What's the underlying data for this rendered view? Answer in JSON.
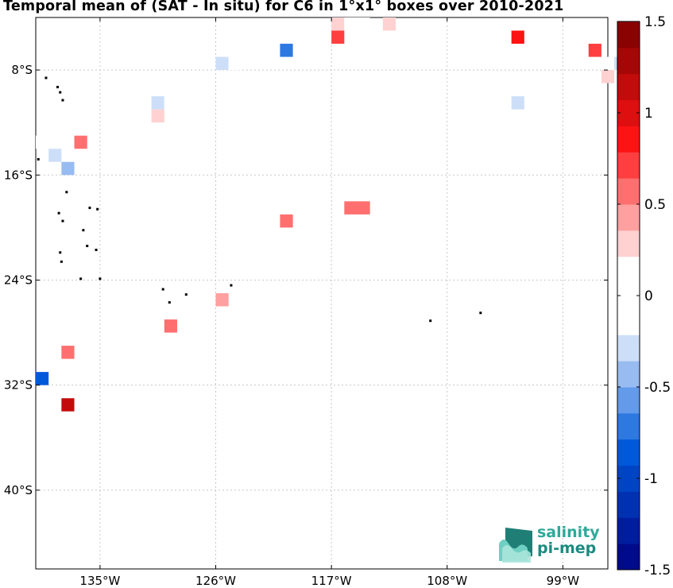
{
  "title": "Temporal mean of (SAT - In situ) for C6 in 1°x1° boxes over 2010-2021",
  "map": {
    "xticks": [
      {
        "lon": -135,
        "label": "135°W"
      },
      {
        "lon": -126,
        "label": "126°W"
      },
      {
        "lon": -117,
        "label": "117°W"
      },
      {
        "lon": -108,
        "label": "108°W"
      },
      {
        "lon": -99,
        "label": "99°W"
      }
    ],
    "yticks": [
      {
        "lat": -8,
        "label": "8°S"
      },
      {
        "lat": -16,
        "label": "16°S"
      },
      {
        "lat": -24,
        "label": "24°S"
      },
      {
        "lat": -32,
        "label": "32°S"
      },
      {
        "lat": -40,
        "label": "40°S"
      }
    ],
    "lon_range": [
      -140,
      -95.5
    ],
    "lat_range": [
      -46,
      -4
    ],
    "grid": true
  },
  "colorbar": {
    "vmin": -1.5,
    "vmax": 1.5,
    "nlevels": 21,
    "ticks": [
      "1.5",
      "1",
      "0.5",
      "0",
      "-0.5",
      "-1",
      "-1.5"
    ]
  },
  "boxes": [
    {
      "lon": -116.5,
      "lat": -4.5,
      "v": 0.3
    },
    {
      "lon": -115.5,
      "lat": -4.5,
      "v": 0.2
    },
    {
      "lon": -114.5,
      "lat": -4.5,
      "v": -0.1
    },
    {
      "lon": -112.5,
      "lat": -4.5,
      "v": 0.35
    },
    {
      "lon": -119.5,
      "lat": -5.5,
      "v": 0.15
    },
    {
      "lon": -118.5,
      "lat": -5.5,
      "v": -0.1
    },
    {
      "lon": -117.5,
      "lat": -5.5,
      "v": 0.1
    },
    {
      "lon": -116.5,
      "lat": -5.5,
      "v": 0.7
    },
    {
      "lon": -102.5,
      "lat": -5.5,
      "v": 0.8
    },
    {
      "lon": -120.5,
      "lat": -6.5,
      "v": -0.7
    },
    {
      "lon": -96.5,
      "lat": -6.5,
      "v": 0.7
    },
    {
      "lon": -125.5,
      "lat": -7.5,
      "v": -0.3
    },
    {
      "lon": -124.5,
      "lat": -7.5,
      "v": 0.15
    },
    {
      "lon": -95.5,
      "lat": -7.5,
      "v": 0.2
    },
    {
      "lon": -94.5,
      "lat": -7.5,
      "v": -0.35
    },
    {
      "lon": -95.5,
      "lat": -8.5,
      "v": 0.3
    },
    {
      "lon": -130.5,
      "lat": -10.5,
      "v": -0.35
    },
    {
      "lon": -129.5,
      "lat": -10.5,
      "v": -0.1
    },
    {
      "lon": -102.5,
      "lat": -10.5,
      "v": -0.35
    },
    {
      "lon": -130.5,
      "lat": -11.5,
      "v": 0.25
    },
    {
      "lon": -112.5,
      "lat": -11.5,
      "v": -0.2
    },
    {
      "lon": -136.5,
      "lat": -12.5,
      "v": -0.1
    },
    {
      "lon": -139.5,
      "lat": -13.5,
      "v": -0.1
    },
    {
      "lon": -138.5,
      "lat": -13.5,
      "v": -0.1
    },
    {
      "lon": -137.5,
      "lat": -13.5,
      "v": -0.1
    },
    {
      "lon": -136.5,
      "lat": -13.5,
      "v": 0.6
    },
    {
      "lon": -102.5,
      "lat": -13.5,
      "v": 0.1
    },
    {
      "lon": -138.5,
      "lat": -14.5,
      "v": -0.3
    },
    {
      "lon": -137.5,
      "lat": -15.5,
      "v": -0.4
    },
    {
      "lon": -115.5,
      "lat": -18.5,
      "v": 0.6
    },
    {
      "lon": -114.5,
      "lat": -18.5,
      "v": 0.5
    },
    {
      "lon": -120.5,
      "lat": -19.5,
      "v": 0.55
    },
    {
      "lon": -125.5,
      "lat": -25.5,
      "v": 0.4
    },
    {
      "lon": -127.5,
      "lat": -26.5,
      "v": -0.15
    },
    {
      "lon": -129.5,
      "lat": -27.5,
      "v": 0.5
    },
    {
      "lon": -137.5,
      "lat": -29.5,
      "v": 0.6
    },
    {
      "lon": -133.5,
      "lat": -29.5,
      "v": -0.2
    },
    {
      "lon": -139.5,
      "lat": -31.5,
      "v": -0.9
    },
    {
      "lon": -137.5,
      "lat": -33.5,
      "v": 1.2
    }
  ],
  "logo": {
    "line1": "salinity",
    "line2": "pi-mep"
  }
}
